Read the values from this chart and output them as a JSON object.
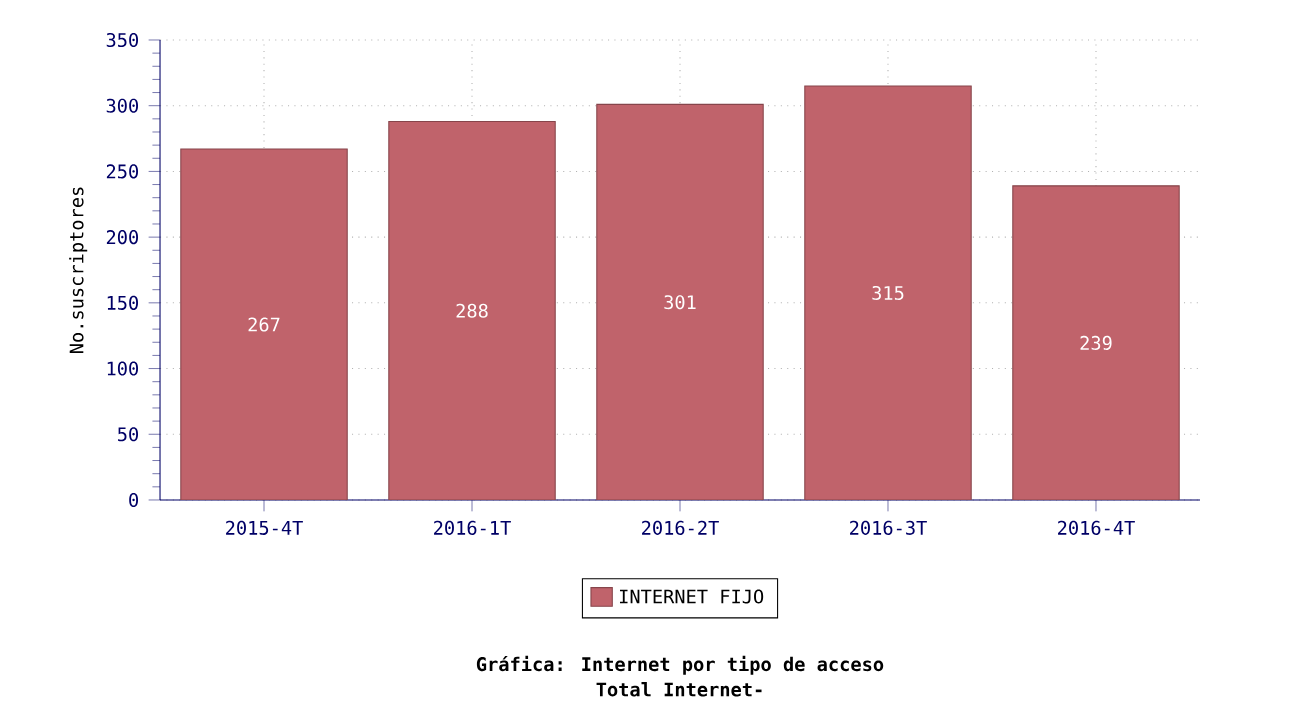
{
  "chart_data": {
    "type": "bar",
    "title": "Gráfica: Internet por tipo de acceso",
    "subtitle": "Total Internet-",
    "ylabel": "No.suscriptores",
    "categories": [
      "2015-4T",
      "2016-1T",
      "2016-2T",
      "2016-3T",
      "2016-4T"
    ],
    "series": [
      {
        "name": "INTERNET FIJO",
        "color": "#c0636b",
        "values": [
          267,
          288,
          301,
          315,
          239
        ]
      }
    ],
    "ylim": [
      0,
      350
    ],
    "yticks": [
      0,
      50,
      100,
      150,
      200,
      250,
      300,
      350
    ],
    "grid": true,
    "legend": "bottom",
    "data_labels": true
  }
}
